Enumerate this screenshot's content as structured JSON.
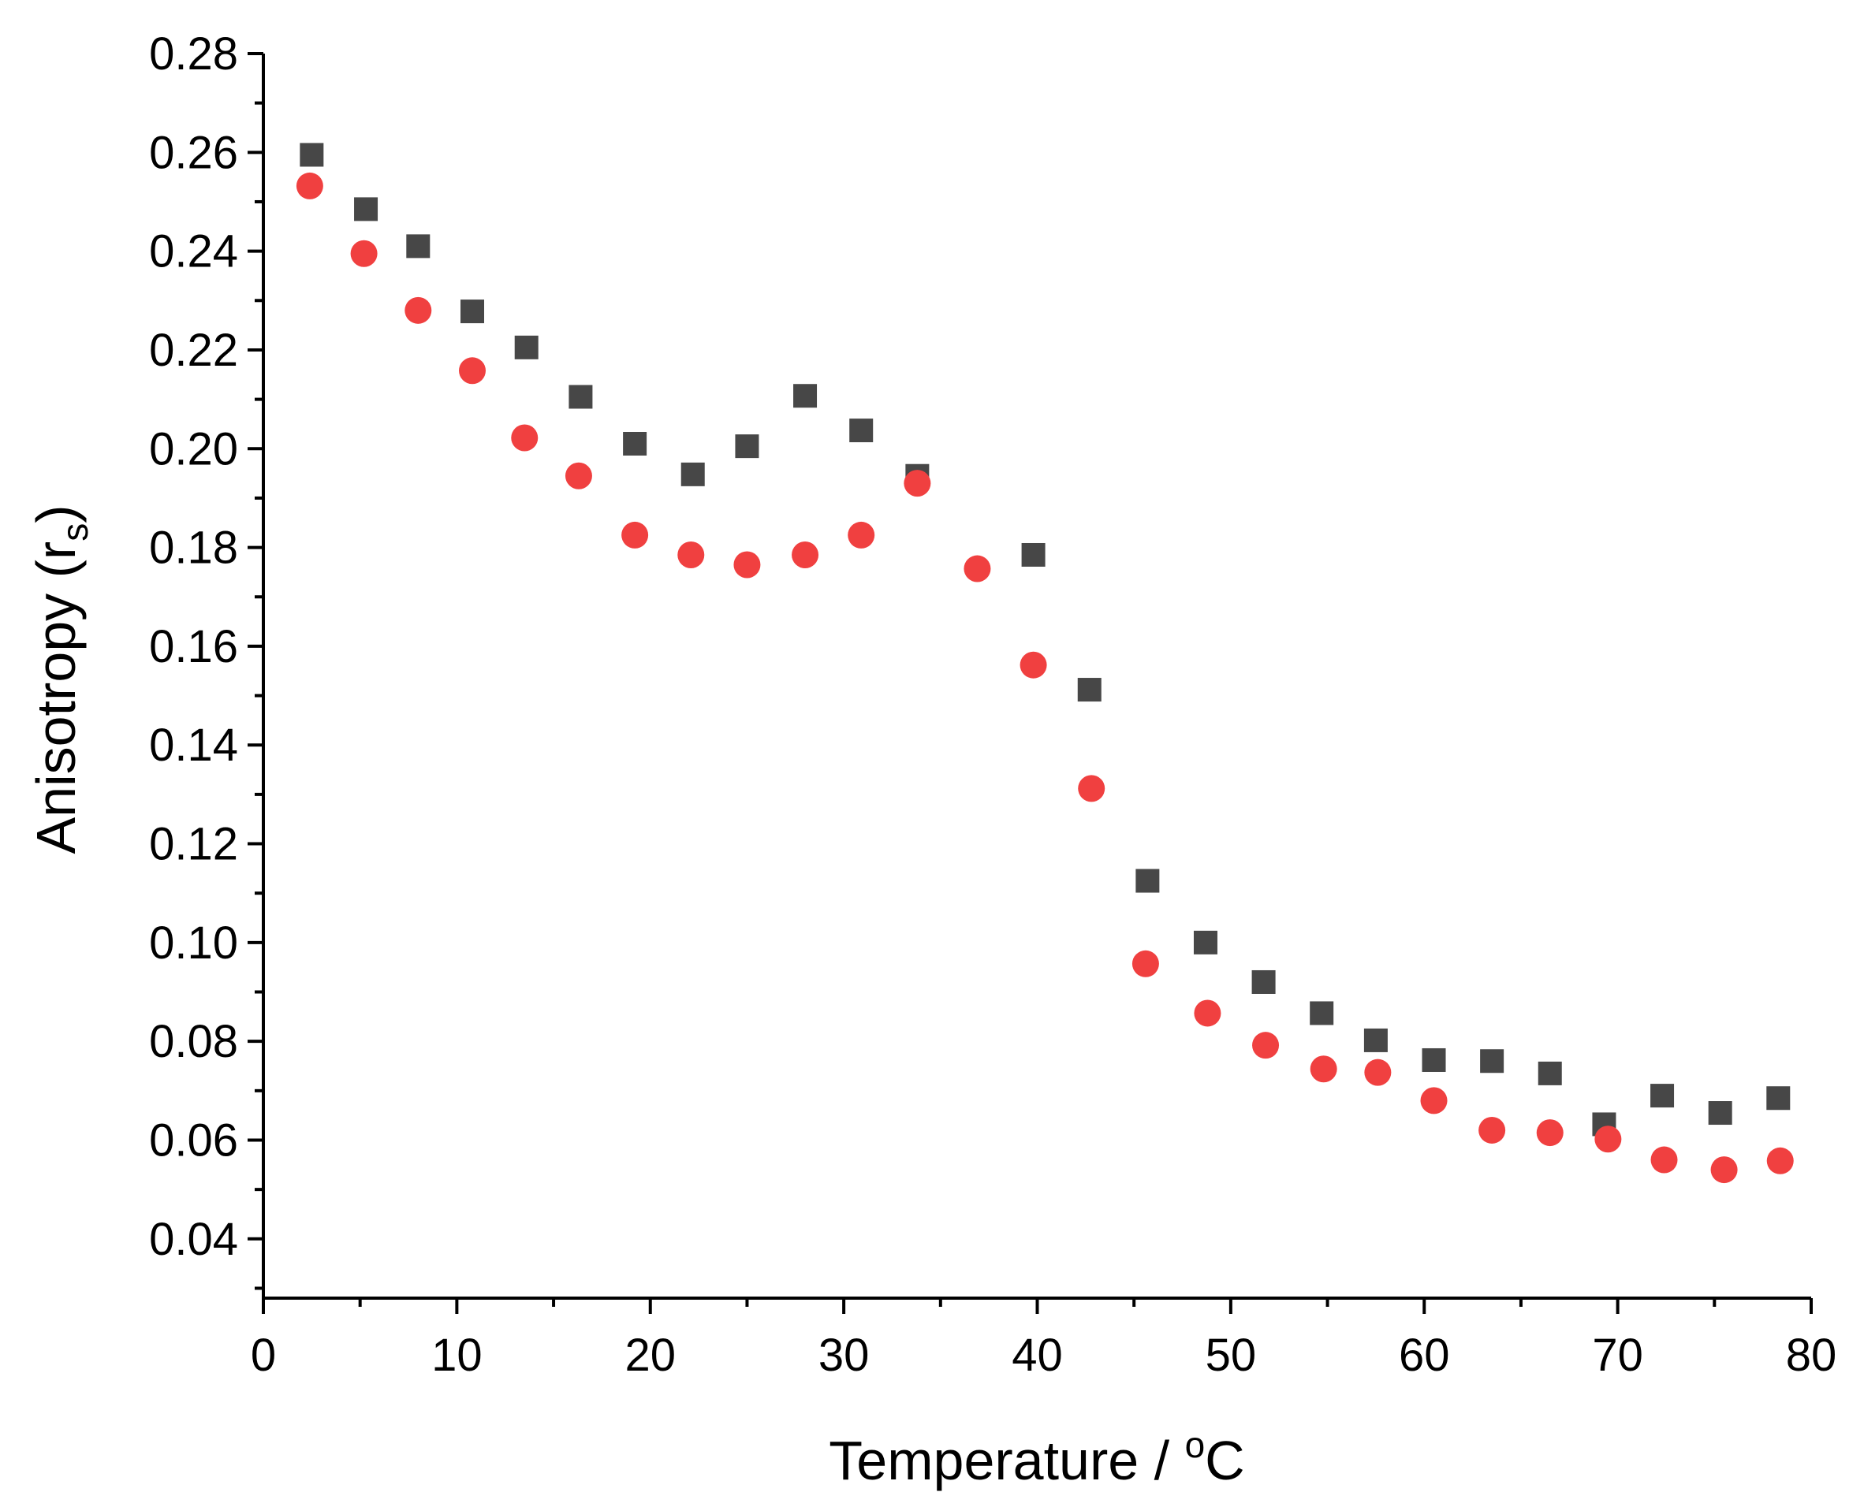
{
  "chart_data": {
    "type": "scatter",
    "title": "",
    "xlabel": "Temperature / ",
    "xlabel_super": "o",
    "xlabel_suffix": "C",
    "ylabel": "Anisotropy (r",
    "ylabel_sub": "s",
    "ylabel_suffix": ")",
    "xlim": [
      0,
      80
    ],
    "ylim": [
      0.028,
      0.28
    ],
    "x_ticks": [
      "0",
      "10",
      "20",
      "30",
      "40",
      "50",
      "60",
      "70",
      "80"
    ],
    "y_ticks": [
      "0.04",
      "0.06",
      "0.08",
      "0.10",
      "0.12",
      "0.14",
      "0.16",
      "0.18",
      "0.20",
      "0.22",
      "0.24",
      "0.26",
      "0.28"
    ],
    "grid": false,
    "series": [
      {
        "name": "squares",
        "marker": "square",
        "color": "#474747",
        "x": [
          2.5,
          5.3,
          8.0,
          10.8,
          13.6,
          16.4,
          19.2,
          22.2,
          25.0,
          28.0,
          30.9,
          33.8,
          39.8,
          42.7,
          45.7,
          48.7,
          51.7,
          54.7,
          57.5,
          60.5,
          63.5,
          66.5,
          69.3,
          72.3,
          75.3,
          78.3
        ],
        "y": [
          0.2595,
          0.2485,
          0.241,
          0.2278,
          0.2205,
          0.2105,
          0.201,
          0.1948,
          0.2005,
          0.2107,
          0.2037,
          0.1945,
          0.1785,
          0.1512,
          0.1125,
          0.1,
          0.092,
          0.0857,
          0.0802,
          0.0762,
          0.076,
          0.0735,
          0.0632,
          0.069,
          0.0655,
          0.0685
        ]
      },
      {
        "name": "circles",
        "marker": "circle",
        "color": "#f04040",
        "x": [
          2.4,
          5.2,
          8.0,
          10.8,
          13.5,
          16.3,
          19.2,
          22.1,
          25.0,
          28.0,
          30.9,
          33.8,
          36.9,
          39.8,
          42.8,
          45.6,
          48.8,
          51.8,
          54.8,
          57.6,
          60.5,
          63.5,
          66.5,
          69.5,
          72.4,
          75.5,
          78.4
        ],
        "y": [
          0.2532,
          0.2395,
          0.228,
          0.2158,
          0.2022,
          0.1945,
          0.1825,
          0.1785,
          0.1765,
          0.1785,
          0.1825,
          0.193,
          0.1757,
          0.1562,
          0.1312,
          0.0957,
          0.0857,
          0.0792,
          0.0744,
          0.0737,
          0.068,
          0.062,
          0.0615,
          0.0602,
          0.056,
          0.054,
          0.0558
        ]
      }
    ]
  }
}
